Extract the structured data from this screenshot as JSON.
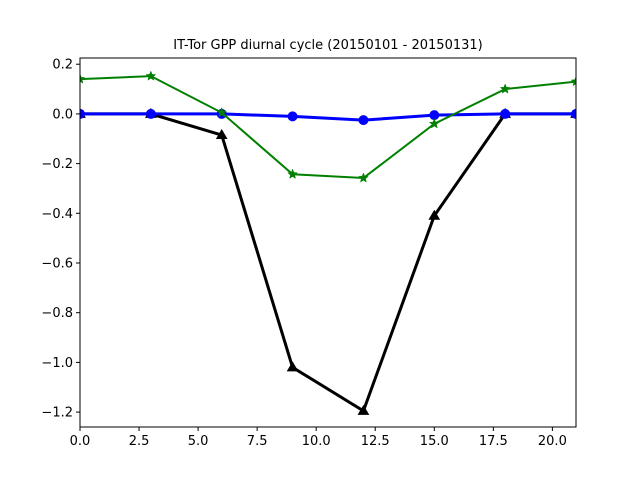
{
  "chart_data": {
    "type": "line",
    "title": "IT-Tor GPP diurnal cycle (20150101 - 20150131)",
    "xlabel": "",
    "ylabel": "",
    "xlim": [
      0,
      21
    ],
    "ylim": [
      -1.26,
      0.225
    ],
    "x_ticks": [
      0.0,
      2.5,
      5.0,
      7.5,
      10.0,
      12.5,
      15.0,
      17.5,
      20.0
    ],
    "x_tick_labels": [
      "0.0",
      "2.5",
      "5.0",
      "7.5",
      "10.0",
      "12.5",
      "15.0",
      "17.5",
      "20.0"
    ],
    "y_ticks": [
      0.2,
      0.0,
      -0.2,
      -0.4,
      -0.6,
      -0.8,
      -1.0,
      -1.2
    ],
    "y_tick_labels": [
      "0.2",
      "0.0",
      "−0.2",
      "−0.4",
      "−0.6",
      "−0.8",
      "−1.0",
      "−1.2"
    ],
    "grid": false,
    "series": [
      {
        "color": "#000000",
        "marker": "triangle",
        "x": [
          0,
          3,
          6,
          9,
          12,
          15,
          18,
          21
        ],
        "values": [
          0.0,
          0.0,
          -0.085,
          -1.02,
          -1.195,
          -0.41,
          0.0,
          0.0
        ]
      },
      {
        "color": "#0000ff",
        "marker": "circle",
        "x": [
          0,
          3,
          6,
          9,
          12,
          15,
          18,
          21
        ],
        "values": [
          0.0,
          0.0,
          0.0,
          -0.01,
          -0.025,
          -0.005,
          0.0,
          0.0
        ]
      },
      {
        "color": "#008000",
        "marker": "star",
        "x": [
          0,
          3,
          6,
          9,
          12,
          15,
          18,
          21
        ],
        "values": [
          0.14,
          0.152,
          0.005,
          -0.243,
          -0.258,
          -0.04,
          0.1,
          0.13
        ]
      }
    ]
  }
}
